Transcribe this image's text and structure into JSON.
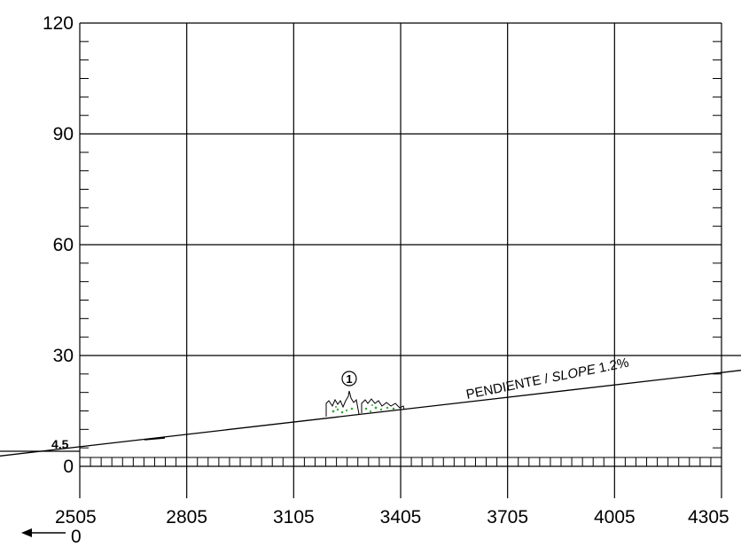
{
  "chart_data": {
    "type": "line",
    "x_ticks": [
      "2505",
      "2805",
      "3105",
      "3405",
      "3705",
      "4005",
      "4305"
    ],
    "y_ticks": [
      "0",
      "30",
      "60",
      "90",
      "120"
    ],
    "xlim": [
      2505,
      4305
    ],
    "ylim": [
      0,
      120
    ],
    "grid": true,
    "series": [
      {
        "name": "PENDIENTE / SLOPE 1.2%",
        "x": [
          2505,
          4305
        ],
        "y": [
          4,
          26
        ]
      }
    ],
    "annotations": {
      "marker_number": "1",
      "level_label": "4.5",
      "slope_prefix": "PENDIENTE / ",
      "slope_italic": "SLOPE",
      "slope_value": " 1.2%",
      "direction_label": "0"
    }
  }
}
